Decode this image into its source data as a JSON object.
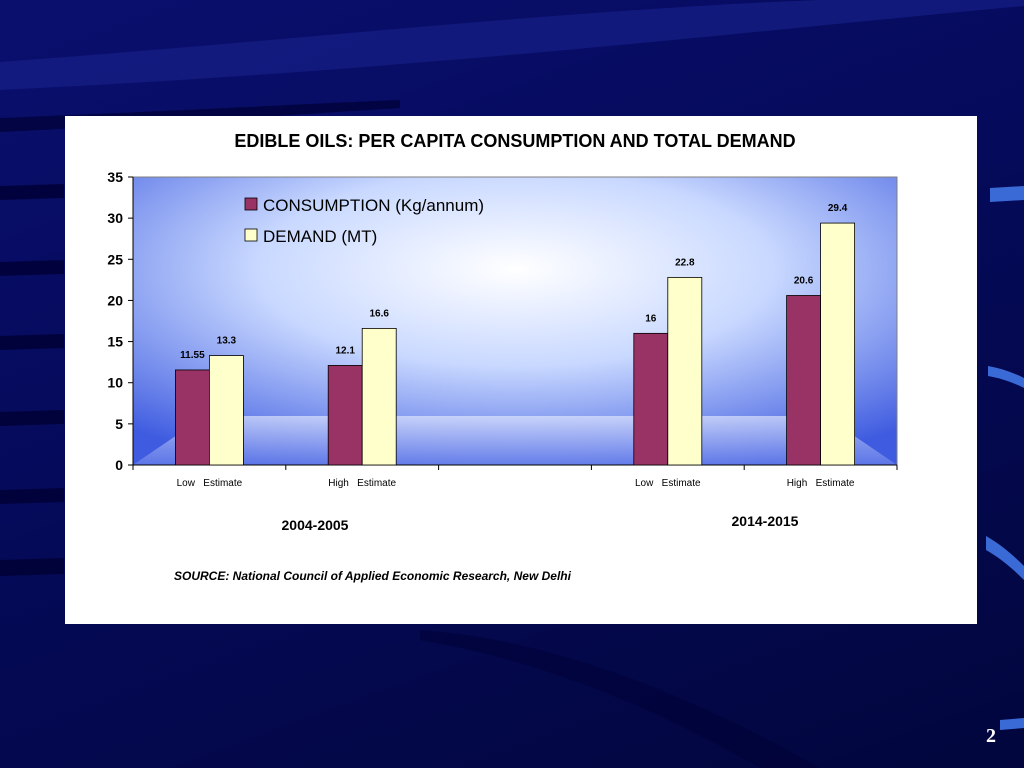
{
  "slide": {
    "page_number": "2"
  },
  "chart_data": {
    "type": "bar",
    "title": "EDIBLE OILS: PER CAPITA CONSUMPTION AND TOTAL DEMAND",
    "categories": [
      "Low   Estimate",
      "High   Estimate",
      "",
      "Low   Estimate",
      "High   Estimate"
    ],
    "series": [
      {
        "name": "CONSUMPTION (Kg/annum)",
        "color": "#993366",
        "values": [
          11.55,
          12.1,
          null,
          16,
          20.6
        ]
      },
      {
        "name": "DEMAND (MT)",
        "color": "#ffffcc",
        "values": [
          13.3,
          16.6,
          null,
          22.8,
          29.4
        ]
      }
    ],
    "data_labels": [
      [
        "11.55",
        "12.1",
        "",
        "16",
        "20.6"
      ],
      [
        "13.3",
        "16.6",
        "",
        "22.8",
        "29.4"
      ]
    ],
    "ylim": [
      0,
      35
    ],
    "yticks": [
      "0",
      "5",
      "10",
      "15",
      "20",
      "25",
      "30",
      "35"
    ],
    "group_labels": [
      "2004-2005",
      "2014-2015"
    ],
    "legend_position": "top-left",
    "grid": false,
    "source": "SOURCE: National Council of Applied Economic Research, New Delhi"
  }
}
